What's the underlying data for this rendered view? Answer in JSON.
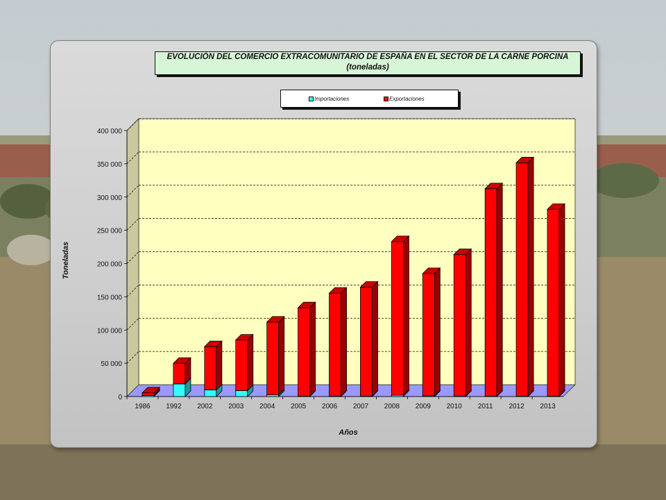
{
  "chart_data": {
    "type": "bar",
    "stacked": true,
    "three_d": true,
    "title": "EVOLUCIÓN DEL COMERCIO EXTRACOMUNITARIO DE ESPAÑA EN EL SECTOR DE LA CARNE PORCINA",
    "subtitle": "(toneladas)",
    "xlabel": "Años",
    "ylabel": "Toneladas",
    "ylim": [
      0,
      400000
    ],
    "y_ticks": [
      0,
      50000,
      100000,
      150000,
      200000,
      250000,
      300000,
      350000,
      400000
    ],
    "y_tick_labels": [
      "0",
      "50 000",
      "100 000",
      "150 000",
      "200 000",
      "250 000",
      "300 000",
      "350 000",
      "400 000"
    ],
    "grid": true,
    "legend_position": "top",
    "categories": [
      "1986",
      "1992",
      "2002",
      "2003",
      "2004",
      "2005",
      "2006",
      "2007",
      "2008",
      "2009",
      "2010",
      "2011",
      "2012",
      "2013"
    ],
    "series": [
      {
        "name": "Importaciones",
        "color": "#33ffff",
        "values": [
          1500,
          19000,
          10000,
          9000,
          2500,
          500,
          500,
          500,
          2000,
          1000,
          500,
          500,
          500,
          500
        ]
      },
      {
        "name": "Exportaciones",
        "color": "#ff0000",
        "values": [
          4000,
          31000,
          65000,
          76000,
          109500,
          133000,
          155000,
          164000,
          231000,
          184000,
          213000,
          312000,
          351000,
          281000
        ]
      }
    ],
    "colors": {
      "plot_background": "#ffffc0",
      "floor": "#9999ff",
      "gridline": "#000000"
    }
  }
}
